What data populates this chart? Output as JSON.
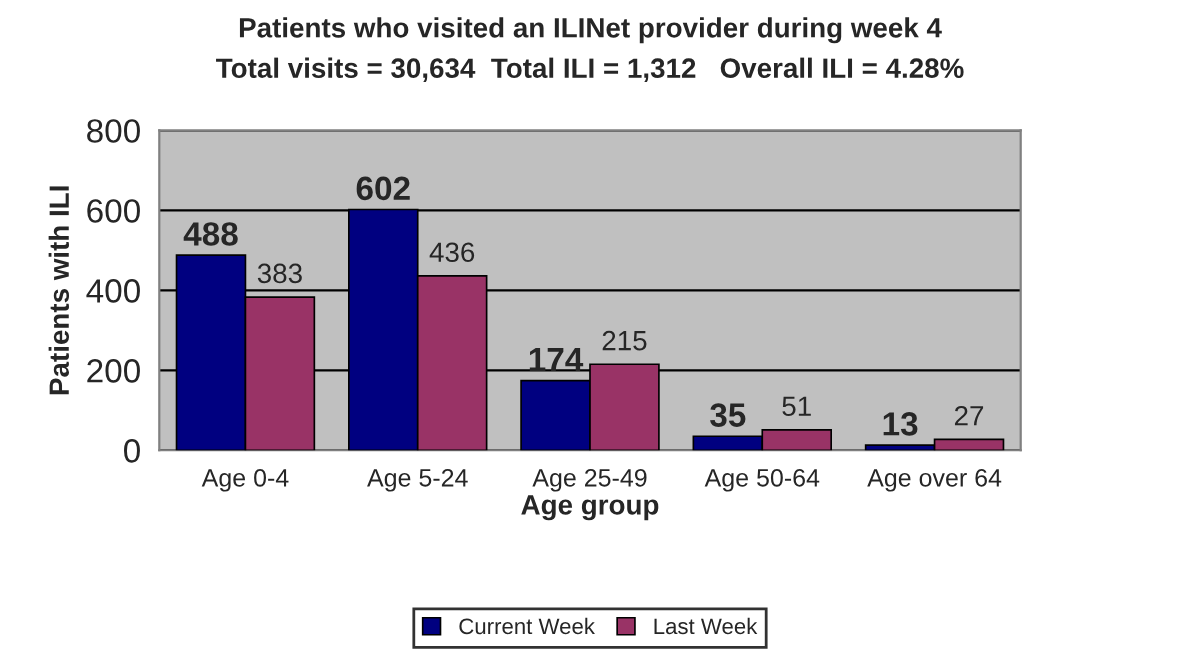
{
  "chart_data": {
    "type": "bar",
    "title": "Patients who visited an ILINet provider during week 4",
    "subtitle": "Total visits = 30,634  Total ILI = 1,312   Overall ILI = 4.28%",
    "xlabel": "Age group",
    "ylabel": "Patients with ILI",
    "categories": [
      "Age 0-4",
      "Age 5-24",
      "Age 25-49",
      "Age 50-64",
      "Age over 64"
    ],
    "series": [
      {
        "name": "Current Week",
        "color": "#000080",
        "values": [
          488,
          602,
          174,
          35,
          13
        ]
      },
      {
        "name": "Last Week",
        "color": "#993366",
        "values": [
          383,
          436,
          215,
          51,
          27
        ]
      }
    ],
    "ylim": [
      0,
      800
    ],
    "yticks": [
      0,
      200,
      400,
      600,
      800
    ],
    "grid": "y",
    "legend": "bottom",
    "data_labels": true
  }
}
